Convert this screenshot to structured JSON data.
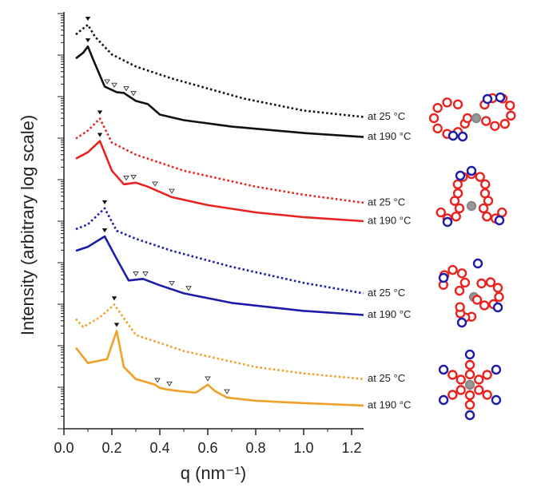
{
  "chart_data": {
    "type": "line",
    "xlabel": "q (nm⁻¹)",
    "ylabel": "Intensity (arbitrary log scale)",
    "xlim": [
      0,
      1.25
    ],
    "ylim": [
      0,
      10.4
    ],
    "xticks": [
      {
        "value": 0,
        "label": "0.0"
      },
      0.2,
      0.4,
      0.6,
      0.8,
      {
        "value": 1,
        "label": "1.0"
      },
      1.2
    ],
    "series": [
      {
        "name": "at 25 °C",
        "color": "#111111",
        "style": "dotted",
        "x": [
          0.05,
          0.07,
          0.1,
          0.13,
          0.2,
          0.3,
          0.45,
          0.75,
          1.0,
          1.25
        ],
        "values": [
          9.84,
          9.94,
          10.08,
          9.78,
          9.34,
          9.04,
          8.74,
          8.24,
          7.94,
          7.78
        ],
        "filled_peaks": [
          0.1
        ],
        "open_peaks": []
      },
      {
        "name": "at 190 °C",
        "color": "#111111",
        "style": "solid",
        "x": [
          0.05,
          0.08,
          0.1,
          0.12,
          0.17,
          0.22,
          0.25,
          0.3,
          0.35,
          0.4,
          0.5,
          0.7,
          1.0,
          1.25
        ],
        "values": [
          9.24,
          9.38,
          9.54,
          9.24,
          8.54,
          8.4,
          8.38,
          8.18,
          8.1,
          7.84,
          7.7,
          7.54,
          7.38,
          7.28
        ],
        "filled_peaks": [
          0.1
        ],
        "open_peaks": [
          0.18,
          0.21,
          0.26,
          0.29
        ]
      },
      {
        "name": "at 25 °C",
        "color": "#e8231f",
        "style": "dotted",
        "x": [
          0.05,
          0.1,
          0.15,
          0.2,
          0.3,
          0.5,
          0.8,
          1.0,
          1.25
        ],
        "values": [
          7.24,
          7.44,
          7.74,
          7.14,
          6.84,
          6.44,
          6.04,
          5.84,
          5.64
        ],
        "filled_peaks": [
          0.15
        ],
        "open_peaks": []
      },
      {
        "name": "at 190 °C",
        "color": "#e8231f",
        "style": "solid",
        "x": [
          0.05,
          0.1,
          0.15,
          0.2,
          0.25,
          0.3,
          0.35,
          0.45,
          0.6,
          0.8,
          1.0,
          1.25
        ],
        "values": [
          6.74,
          6.9,
          7.18,
          6.44,
          6.1,
          6.14,
          6.04,
          5.78,
          5.58,
          5.4,
          5.28,
          5.18
        ],
        "filled_peaks": [
          0.15
        ],
        "open_peaks": [
          0.26,
          0.29,
          0.38,
          0.45
        ]
      },
      {
        "name": "at 25 °C",
        "color": "#1c1ca8",
        "style": "dotted",
        "x": [
          0.05,
          0.1,
          0.17,
          0.22,
          0.3,
          0.45,
          0.7,
          1.0,
          1.25
        ],
        "values": [
          4.98,
          5.1,
          5.5,
          4.94,
          4.74,
          4.44,
          4.04,
          3.64,
          3.38
        ],
        "filled_peaks": [
          0.17
        ],
        "open_peaks": []
      },
      {
        "name": "at 190 °C",
        "color": "#1c1ca8",
        "style": "solid",
        "x": [
          0.05,
          0.1,
          0.17,
          0.22,
          0.27,
          0.33,
          0.4,
          0.5,
          0.7,
          1.0,
          1.25
        ],
        "values": [
          4.44,
          4.54,
          4.8,
          4.24,
          3.7,
          3.74,
          3.58,
          3.38,
          3.14,
          2.94,
          2.84
        ],
        "filled_peaks": [
          0.17
        ],
        "open_peaks": [
          0.3,
          0.34,
          0.45,
          0.52
        ]
      },
      {
        "name": "at 25 °C",
        "color": "#f0a028",
        "style": "dotted",
        "x": [
          0.05,
          0.08,
          0.15,
          0.21,
          0.3,
          0.5,
          0.8,
          1.0,
          1.25
        ],
        "values": [
          2.74,
          2.54,
          2.78,
          3.1,
          2.34,
          1.94,
          1.54,
          1.38,
          1.24
        ],
        "filled_peaks": [
          0.21
        ],
        "open_peaks": []
      },
      {
        "name": "at 190 °C",
        "color": "#f0a028",
        "style": "solid",
        "x": [
          0.05,
          0.1,
          0.18,
          0.22,
          0.25,
          0.3,
          0.38,
          0.4,
          0.43,
          0.48,
          0.55,
          0.6,
          0.63,
          0.68,
          0.8,
          1.0,
          1.25
        ],
        "values": [
          2.02,
          1.64,
          1.74,
          2.44,
          1.54,
          1.24,
          1.1,
          1.02,
          0.98,
          0.94,
          0.9,
          1.1,
          0.94,
          0.78,
          0.7,
          0.64,
          0.58
        ],
        "filled_peaks": [
          0.22
        ],
        "open_peaks": [
          0.39,
          0.44,
          0.6,
          0.68
        ]
      }
    ]
  }
}
